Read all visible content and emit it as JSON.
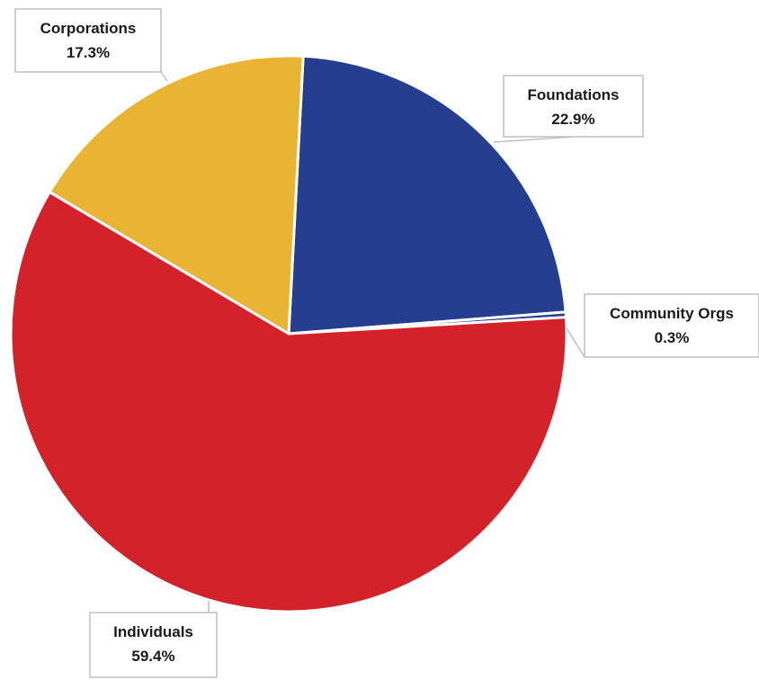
{
  "chart_data": {
    "type": "pie",
    "title": "",
    "start_angle_deg": 3,
    "direction": "clockwise",
    "slices": [
      {
        "label": "Foundations",
        "value": 22.9,
        "display": "22.9%",
        "color": "#253E8F"
      },
      {
        "label": "Community Orgs",
        "value": 0.3,
        "display": "0.3%",
        "color": "#253E8F"
      },
      {
        "label": "Individuals",
        "value": 59.4,
        "display": "59.4%",
        "color": "#D3222A"
      },
      {
        "label": "Corporations",
        "value": 17.3,
        "display": "17.3%",
        "color": "#E9B334"
      }
    ],
    "legend": "none",
    "data_labels": "callout-boxes"
  }
}
